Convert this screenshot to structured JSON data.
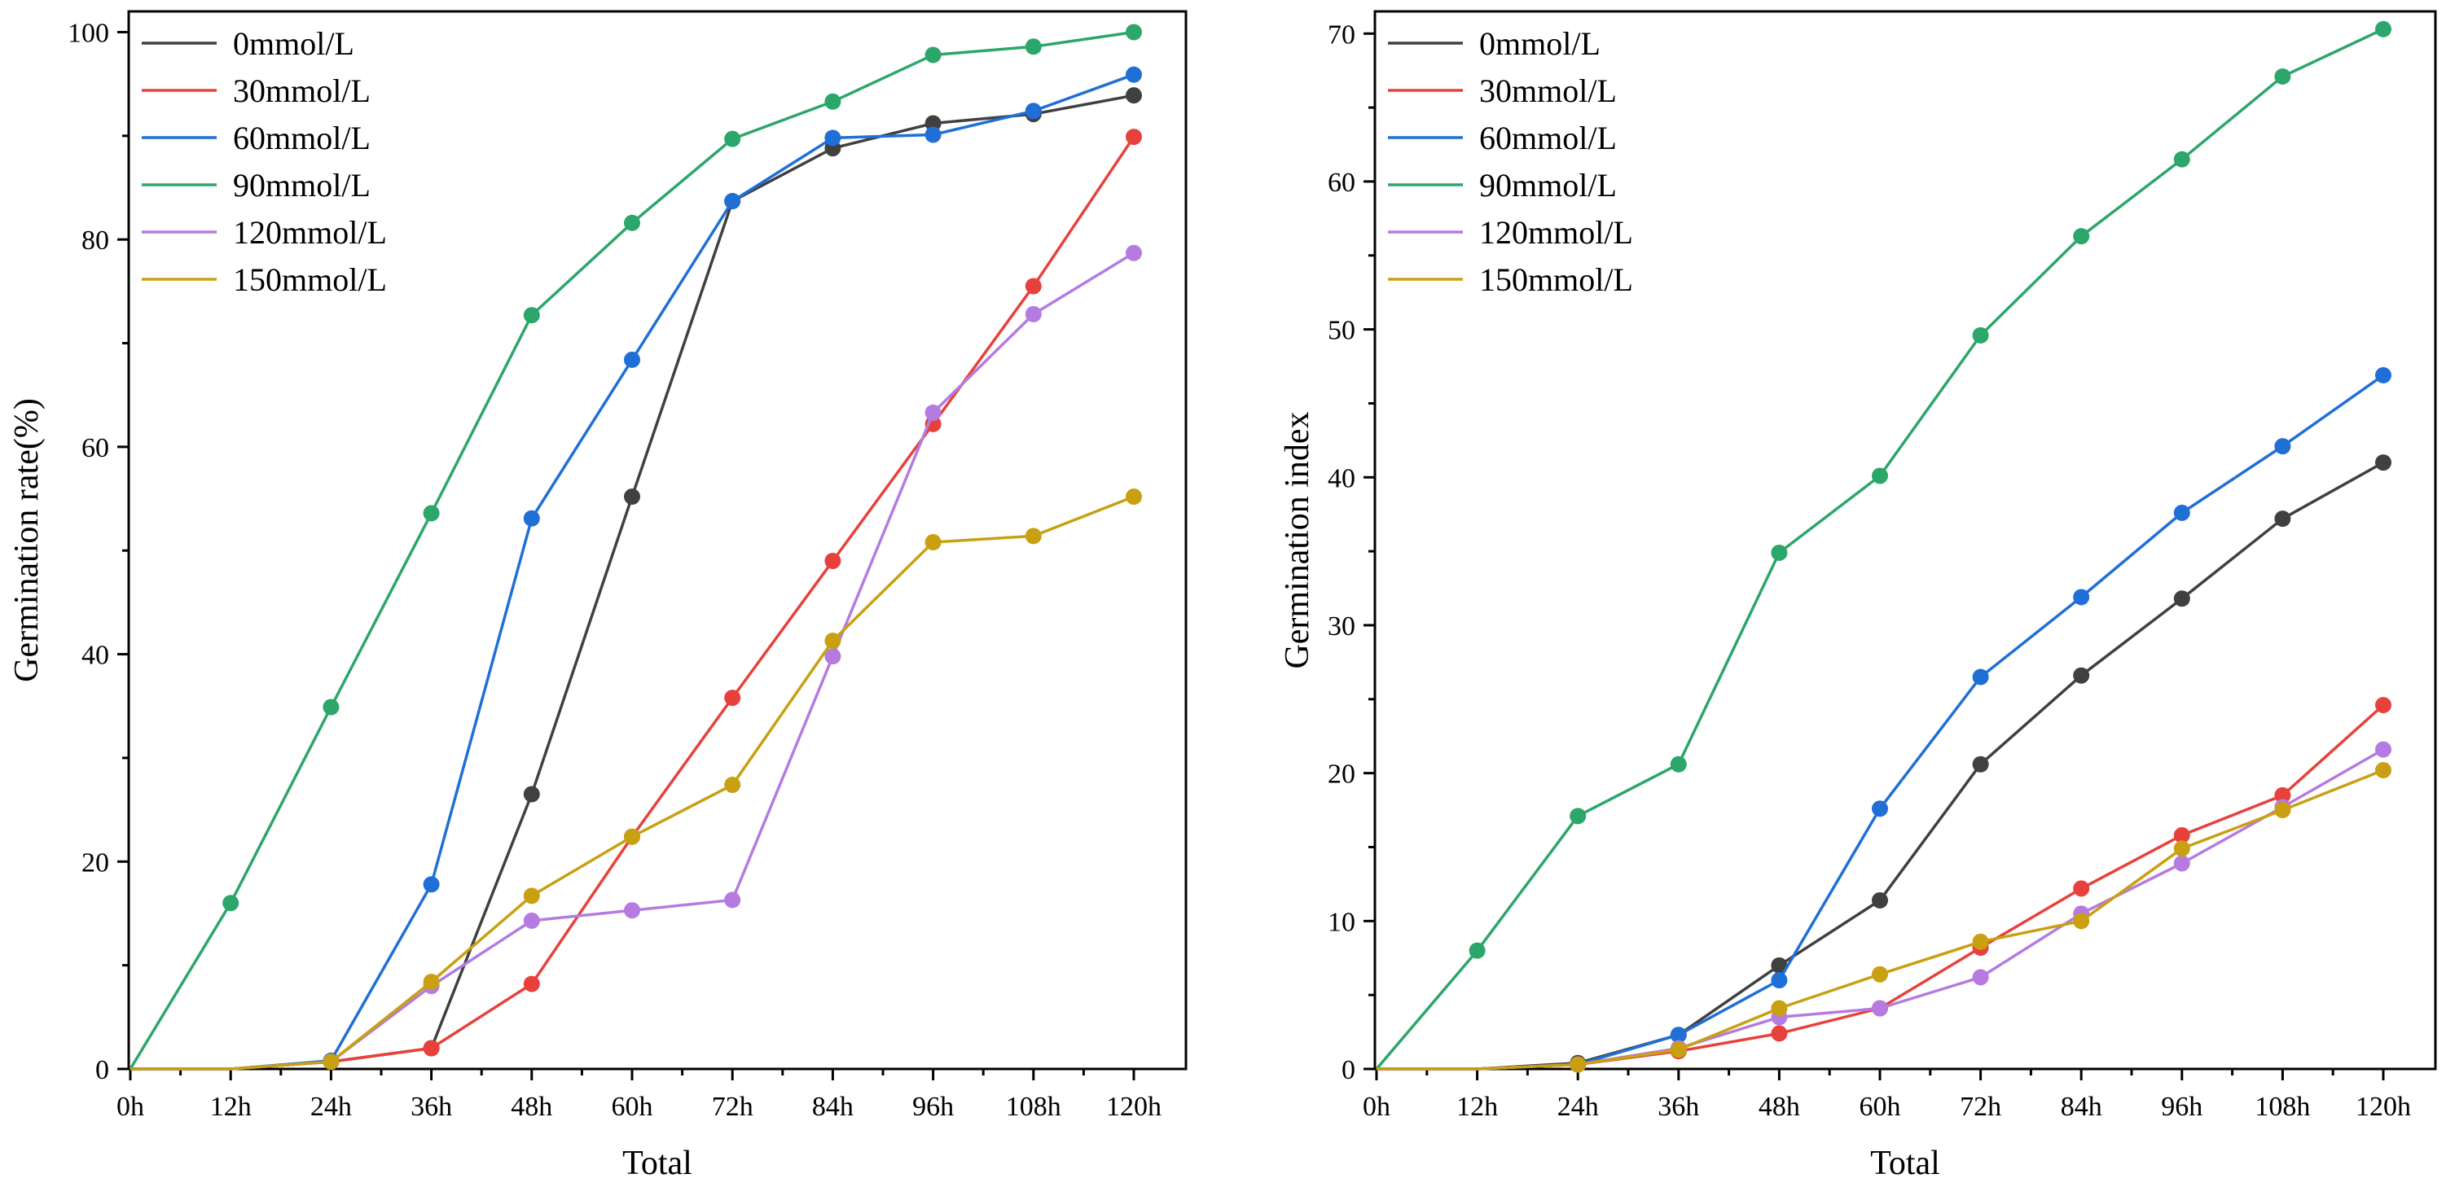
{
  "figure": {
    "panels": 2
  },
  "chart_data": [
    {
      "type": "line",
      "title": "",
      "xlabel": "Total",
      "ylabel": "Germination rate(%)",
      "categories": [
        "0h",
        "12h",
        "24h",
        "36h",
        "48h",
        "60h",
        "72h",
        "84h",
        "96h",
        "108h",
        "120h"
      ],
      "ylim": [
        0,
        102
      ],
      "yticks": [
        0,
        20,
        40,
        60,
        80,
        100
      ],
      "grid": false,
      "legend_position": "top-left",
      "series": [
        {
          "name": "0mmol/L",
          "color": "#404040",
          "values": [
            0,
            0,
            0.7,
            2,
            26.5,
            55.2,
            83.7,
            88.8,
            91.2,
            92.1,
            93.9
          ]
        },
        {
          "name": "30mmol/L",
          "color": "#e8413c",
          "values": [
            0,
            0,
            0.7,
            2,
            8.2,
            22.4,
            35.8,
            49,
            62.2,
            75.5,
            89.9
          ]
        },
        {
          "name": "60mmol/L",
          "color": "#1f6fd6",
          "values": [
            0,
            0,
            0.8,
            17.8,
            53.1,
            68.4,
            83.7,
            89.8,
            90.1,
            92.4,
            95.9
          ]
        },
        {
          "name": "90mmol/L",
          "color": "#2ca66a",
          "values": [
            0,
            16,
            34.9,
            53.6,
            72.7,
            81.6,
            89.7,
            93.3,
            97.8,
            98.6,
            100
          ]
        },
        {
          "name": "120mmol/L",
          "color": "#b57be0",
          "values": [
            0,
            0,
            0.7,
            8,
            14.3,
            15.3,
            16.3,
            39.8,
            63.3,
            72.8,
            78.7
          ]
        },
        {
          "name": "150mmol/L",
          "color": "#c9a012",
          "values": [
            0,
            0,
            0.7,
            8.4,
            16.7,
            22.4,
            27.4,
            41.3,
            50.8,
            51.4,
            55.2
          ]
        }
      ]
    },
    {
      "type": "line",
      "title": "",
      "xlabel": "Total",
      "ylabel": "Germination index",
      "categories": [
        "0h",
        "12h",
        "24h",
        "36h",
        "48h",
        "60h",
        "72h",
        "84h",
        "96h",
        "108h",
        "120h"
      ],
      "ylim": [
        0,
        71.5
      ],
      "yticks": [
        0,
        10,
        20,
        30,
        40,
        50,
        60,
        70
      ],
      "grid": false,
      "legend_position": "top-left",
      "series": [
        {
          "name": "0mmol/L",
          "color": "#404040",
          "values": [
            0,
            0,
            0.4,
            2.3,
            7,
            11.4,
            20.6,
            26.6,
            31.8,
            37.2,
            41
          ]
        },
        {
          "name": "30mmol/L",
          "color": "#e8413c",
          "values": [
            0,
            0,
            0.3,
            1.2,
            2.4,
            4.1,
            8.2,
            12.2,
            15.8,
            18.5,
            24.6
          ]
        },
        {
          "name": "60mmol/L",
          "color": "#1f6fd6",
          "values": [
            0,
            0,
            0.3,
            2.3,
            6,
            17.6,
            26.5,
            31.9,
            37.6,
            42.1,
            46.9
          ]
        },
        {
          "name": "90mmol/L",
          "color": "#2ca66a",
          "values": [
            0,
            8,
            17.1,
            20.6,
            34.9,
            40.1,
            49.6,
            56.3,
            61.5,
            67.1,
            70.3
          ]
        },
        {
          "name": "120mmol/L",
          "color": "#b57be0",
          "values": [
            0,
            0,
            0.3,
            1.4,
            3.5,
            4.1,
            6.2,
            10.5,
            13.9,
            17.7,
            21.6
          ]
        },
        {
          "name": "150mmol/L",
          "color": "#c9a012",
          "values": [
            0,
            0,
            0.3,
            1.3,
            4.1,
            6.4,
            8.6,
            10,
            14.9,
            17.5,
            20.2
          ]
        }
      ]
    }
  ]
}
